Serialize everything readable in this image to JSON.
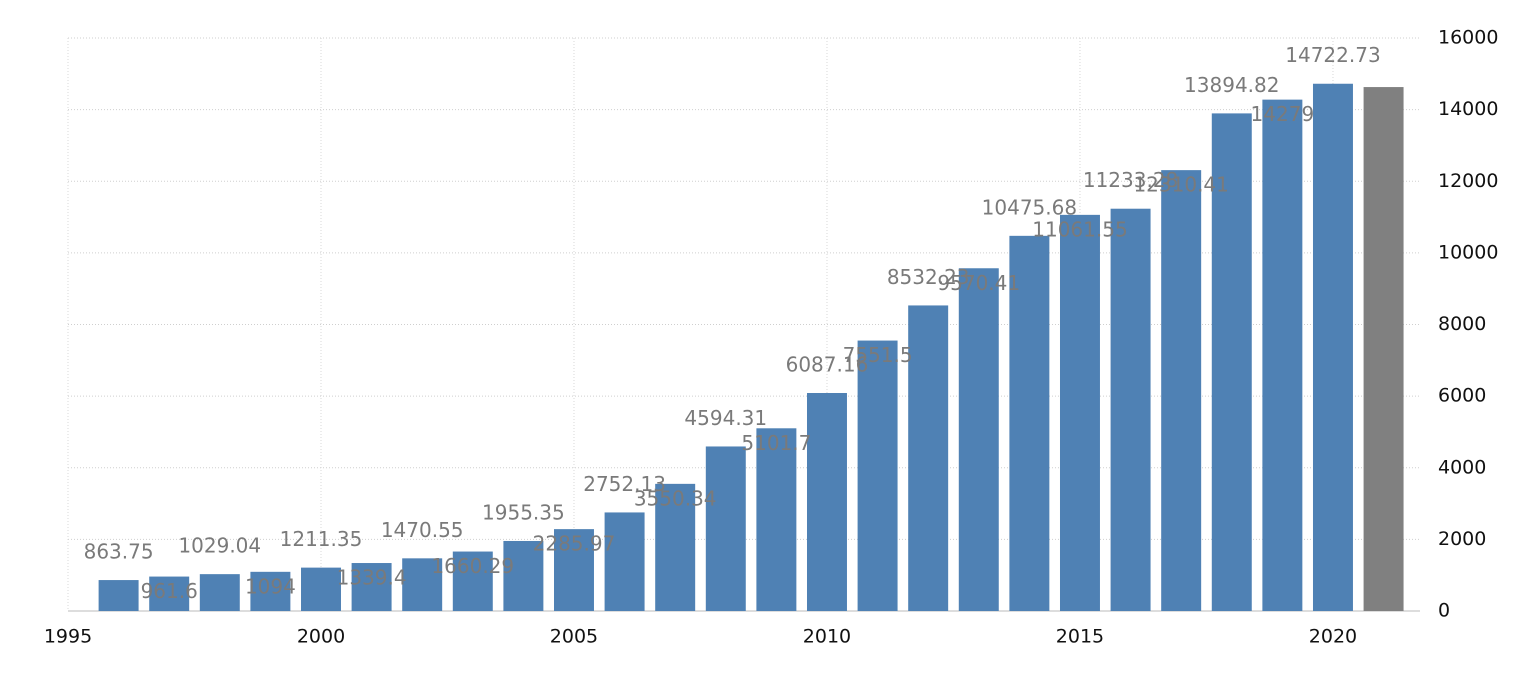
{
  "chart_data": {
    "type": "bar",
    "x": [
      1996,
      1997,
      1998,
      1999,
      2000,
      2001,
      2002,
      2003,
      2004,
      2005,
      2006,
      2007,
      2008,
      2009,
      2010,
      2011,
      2012,
      2013,
      2014,
      2015,
      2016,
      2017,
      2018,
      2019,
      2020,
      2021
    ],
    "values": [
      863.75,
      961.6,
      1029.04,
      1094,
      1211.35,
      1339.4,
      1470.55,
      1660.29,
      1955.35,
      2285.97,
      2752.13,
      3550.34,
      4594.31,
      5101.7,
      6087.16,
      7551.5,
      8532.23,
      9570.41,
      10475.68,
      11061.55,
      11233.28,
      12310.41,
      13894.82,
      14279,
      14722.73,
      14630
    ],
    "value_labels": [
      "863.75",
      "961.6",
      "1029.04",
      "1094",
      "1211.35",
      "1339.4",
      "1470.55",
      "1660.29",
      "1955.35",
      "2285.97",
      "2752.13",
      "3550.34",
      "4594.31",
      "5101.7",
      "6087.16",
      "7551.5",
      "8532.23",
      "9570.41",
      "10475.68",
      "11061.55",
      "11233.28",
      "12310.41",
      "13894.82",
      "14279",
      "14722.73",
      null
    ],
    "colors": [
      "#4f81b4",
      "#4f81b4",
      "#4f81b4",
      "#4f81b4",
      "#4f81b4",
      "#4f81b4",
      "#4f81b4",
      "#4f81b4",
      "#4f81b4",
      "#4f81b4",
      "#4f81b4",
      "#4f81b4",
      "#4f81b4",
      "#4f81b4",
      "#4f81b4",
      "#4f81b4",
      "#4f81b4",
      "#4f81b4",
      "#4f81b4",
      "#4f81b4",
      "#4f81b4",
      "#4f81b4",
      "#4f81b4",
      "#4f81b4",
      "#4f81b4",
      "#808080"
    ],
    "xlim": [
      1995,
      2021.72
    ],
    "xticks": [
      1995,
      2000,
      2005,
      2010,
      2015,
      2020
    ],
    "ylim": [
      0,
      16000
    ],
    "yticks": [
      0,
      2000,
      4000,
      6000,
      8000,
      10000,
      12000,
      14000,
      16000
    ],
    "grid": true
  }
}
